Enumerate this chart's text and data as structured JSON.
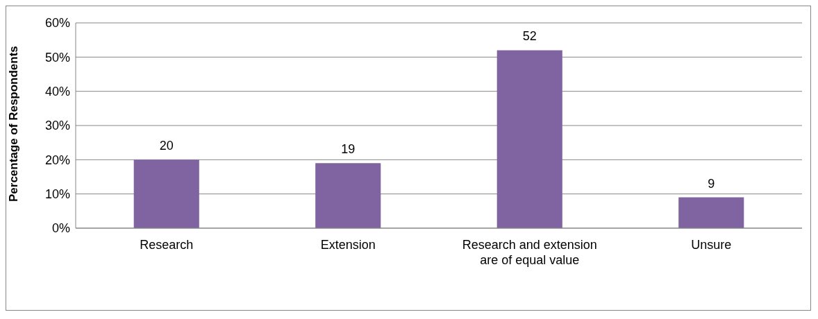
{
  "chart_data": {
    "type": "bar",
    "ylabel": "Percentage of Respondents",
    "categories": [
      "Research",
      "Extension",
      "Research and extension are of equal value",
      "Unsure"
    ],
    "values": [
      20,
      19,
      52,
      9
    ],
    "color": "#8064a2",
    "data_labels": true,
    "ylim": [
      0,
      60
    ],
    "yticks": [
      {
        "value": 0,
        "label": "0%"
      },
      {
        "value": 10,
        "label": "10%"
      },
      {
        "value": 20,
        "label": "20%"
      },
      {
        "value": 30,
        "label": "30%"
      },
      {
        "value": 40,
        "label": "40%"
      },
      {
        "value": 50,
        "label": "50%"
      },
      {
        "value": 60,
        "label": "60%"
      }
    ],
    "grid": "y",
    "legend": false
  }
}
